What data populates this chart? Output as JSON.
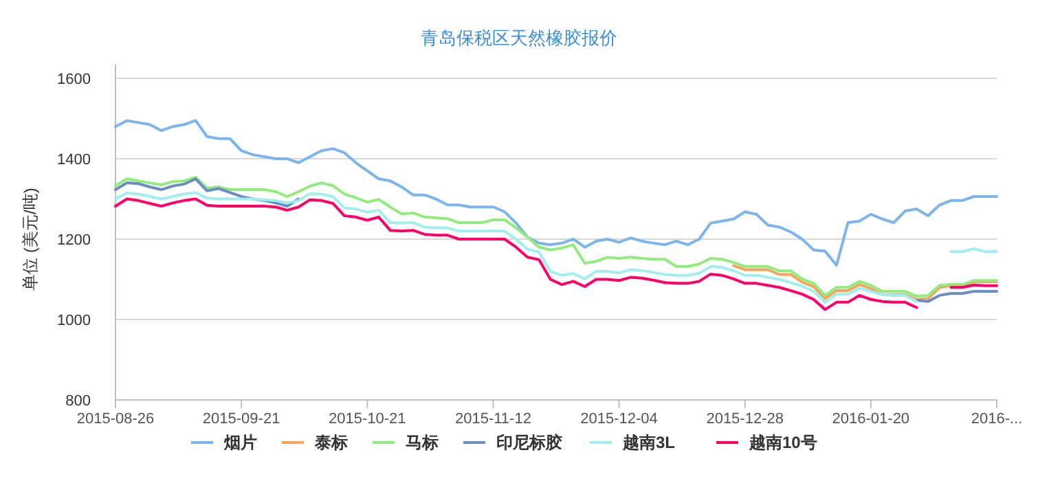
{
  "chart_data": {
    "type": "line",
    "title": "青岛保税区天然橡胶报价",
    "ylabel": "单位 (美元/吨)",
    "categories": [
      "2015-08-26",
      null,
      null,
      null,
      null,
      null,
      null,
      null,
      null,
      null,
      null,
      "2015-09-21",
      null,
      null,
      null,
      null,
      null,
      null,
      null,
      null,
      null,
      null,
      "2015-10-21",
      null,
      null,
      null,
      null,
      null,
      null,
      null,
      null,
      null,
      null,
      "2015-11-12",
      null,
      null,
      null,
      null,
      null,
      null,
      null,
      null,
      null,
      null,
      "2015-12-04",
      null,
      null,
      null,
      null,
      null,
      null,
      null,
      null,
      null,
      null,
      "2015-12-28",
      null,
      null,
      null,
      null,
      null,
      null,
      null,
      null,
      null,
      null,
      "2016-01-20",
      null,
      null,
      null,
      null,
      null,
      null,
      null,
      null,
      null,
      null,
      "2016-..."
    ],
    "ylim": [
      800,
      1600
    ],
    "yticks": [
      800,
      1000,
      1200,
      1400,
      1600
    ],
    "grid": "y",
    "legend": "bottom",
    "marker": "none",
    "line_style": "solid",
    "series": [
      {
        "name": "烟片",
        "color": "#7cb5ec",
        "values": [
          1480,
          1495,
          1490,
          1485,
          1470,
          1480,
          1485,
          1495,
          1455,
          1450,
          1450,
          1420,
          1410,
          1405,
          1400,
          1400,
          1390,
          1405,
          1420,
          1425,
          1415,
          1390,
          1370,
          1350,
          1345,
          1330,
          1310,
          1310,
          1300,
          1285,
          1285,
          1280,
          1280,
          1280,
          1268,
          1240,
          1205,
          1190,
          1186,
          1190,
          1200,
          1180,
          1195,
          1200,
          1192,
          1203,
          1195,
          1190,
          1186,
          1195,
          1186,
          1200,
          1240,
          1245,
          1250,
          1268,
          1262,
          1235,
          1230,
          1218,
          1200,
          1173,
          1170,
          1135,
          1241,
          1245,
          1262,
          1250,
          1241,
          1270,
          1275,
          1258,
          1285,
          1296,
          1296,
          1306,
          1306,
          1306
        ]
      },
      {
        "name": "泰标",
        "color": "#f7a35c",
        "values": [
          null,
          null,
          null,
          null,
          null,
          null,
          null,
          null,
          null,
          null,
          null,
          null,
          null,
          null,
          null,
          null,
          null,
          null,
          null,
          null,
          null,
          null,
          null,
          null,
          null,
          null,
          null,
          null,
          null,
          null,
          null,
          null,
          null,
          null,
          null,
          null,
          null,
          null,
          null,
          null,
          null,
          null,
          null,
          null,
          null,
          null,
          null,
          null,
          null,
          null,
          null,
          null,
          null,
          null,
          1134,
          1124,
          1124,
          1124,
          1112,
          1112,
          1093,
          1082,
          1052,
          1072,
          1072,
          1087,
          1077,
          1062,
          1062,
          1062,
          1050,
          1052,
          1080,
          1084,
          1084,
          1094,
          1094,
          1094
        ]
      },
      {
        "name": "马标",
        "color": "#90ed7d",
        "values": [
          1333,
          1350,
          1345,
          1340,
          1335,
          1343,
          1345,
          1354,
          1327,
          1330,
          1323,
          1323,
          1323,
          1323,
          1318,
          1306,
          1318,
          1332,
          1340,
          1333,
          1312,
          1303,
          1292,
          1299,
          1280,
          1263,
          1265,
          1255,
          1253,
          1251,
          1241,
          1241,
          1241,
          1248,
          1248,
          1228,
          1205,
          1180,
          1173,
          1178,
          1186,
          1140,
          1145,
          1155,
          1152,
          1155,
          1152,
          1150,
          1150,
          1132,
          1132,
          1138,
          1152,
          1150,
          1142,
          1132,
          1132,
          1132,
          1121,
          1121,
          1101,
          1090,
          1060,
          1080,
          1080,
          1095,
          1085,
          1070,
          1070,
          1070,
          1058,
          1060,
          1085,
          1087,
          1087,
          1097,
          1097,
          1097
        ]
      },
      {
        "name": "印尼标胶",
        "color": "#6b8cc4",
        "values": [
          1323,
          1340,
          1338,
          1330,
          1323,
          1332,
          1337,
          1350,
          1320,
          1326,
          1316,
          1306,
          1300,
          1296,
          1290,
          1282,
          1300,
          null,
          null,
          null,
          null,
          null,
          null,
          null,
          null,
          null,
          null,
          null,
          null,
          null,
          null,
          null,
          null,
          null,
          null,
          null,
          null,
          null,
          null,
          null,
          null,
          null,
          null,
          null,
          null,
          null,
          null,
          null,
          null,
          null,
          null,
          null,
          null,
          null,
          null,
          null,
          null,
          null,
          null,
          null,
          null,
          null,
          null,
          null,
          null,
          null,
          null,
          null,
          null,
          null,
          1048,
          1045,
          1060,
          1065,
          1065,
          1070,
          1070,
          1070
        ]
      },
      {
        "name": "越南3L",
        "color": "#a0eef0",
        "values": [
          1300,
          1315,
          1312,
          1306,
          1300,
          1306,
          1312,
          1316,
          1302,
          1300,
          1300,
          1300,
          1300,
          1298,
          1296,
          1290,
          1296,
          1313,
          1312,
          1306,
          1278,
          1275,
          1267,
          1272,
          1241,
          1240,
          1241,
          1230,
          1228,
          1228,
          1220,
          1220,
          1220,
          1220,
          1220,
          1200,
          1175,
          1168,
          1120,
          1110,
          1115,
          1101,
          1120,
          1120,
          1116,
          1124,
          1122,
          1117,
          1112,
          1110,
          1110,
          1115,
          1132,
          1130,
          1121,
          1110,
          1110,
          1105,
          1100,
          1092,
          1083,
          1070,
          1043,
          1063,
          1063,
          1078,
          1070,
          1062,
          1060,
          1060,
          1045,
          null,
          null,
          1169,
          1169,
          1176,
          1169,
          1169
        ]
      },
      {
        "name": "越南10号",
        "color": "#ff0066",
        "values": [
          1282,
          1300,
          1296,
          1289,
          1282,
          1290,
          1296,
          1300,
          1284,
          1282,
          1282,
          1282,
          1282,
          1282,
          1280,
          1272,
          1280,
          1298,
          1296,
          1289,
          1258,
          1255,
          1247,
          1255,
          1222,
          1220,
          1222,
          1212,
          1210,
          1210,
          1200,
          1200,
          1200,
          1200,
          1200,
          1180,
          1155,
          1149,
          1100,
          1087,
          1095,
          1082,
          1100,
          1100,
          1097,
          1105,
          1103,
          1098,
          1092,
          1090,
          1090,
          1095,
          1113,
          1110,
          1101,
          1090,
          1090,
          1085,
          1080,
          1072,
          1063,
          1050,
          1025,
          1043,
          1043,
          1060,
          1050,
          1045,
          1043,
          1043,
          1030,
          null,
          null,
          1080,
          1080,
          1086,
          1084,
          1084
        ]
      }
    ]
  }
}
